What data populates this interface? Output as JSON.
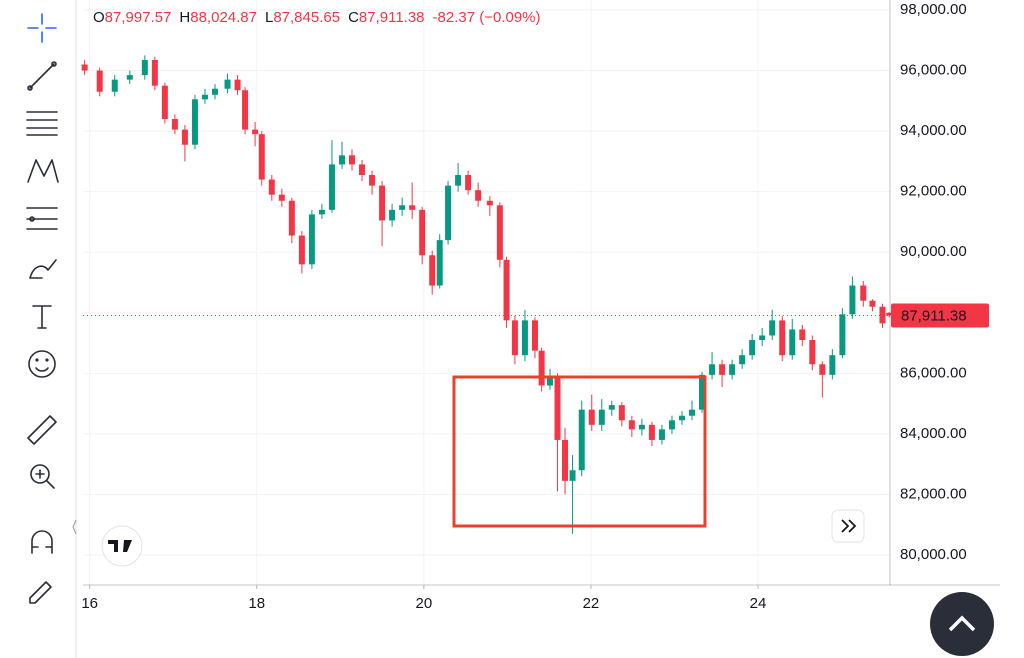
{
  "chart_data": {
    "type": "candlestick",
    "legend": [
      {
        "key": "O",
        "value": "87,997.57"
      },
      {
        "key": "H",
        "value": "88,024.87"
      },
      {
        "key": "L",
        "value": "87,845.65"
      },
      {
        "key": "C",
        "value": "87,911.38"
      }
    ],
    "change": "-82.37 (−0.09%)",
    "last_price": {
      "value": 87911.38,
      "label": "87,911.38"
    },
    "up_color": "#089981",
    "down_color": "#f23645",
    "xlim": [
      15.92,
      25.58
    ],
    "xticks": [
      16,
      18,
      20,
      22,
      24
    ],
    "ylim": [
      79010,
      98330
    ],
    "yticks": [
      {
        "value": 80000,
        "label": "80,000.00"
      },
      {
        "value": 82000,
        "label": "82,000.00"
      },
      {
        "value": 84000,
        "label": "84,000.00"
      },
      {
        "value": 86000,
        "label": "86,000.00"
      },
      {
        "value": 88000,
        "label": "88,000.00"
      },
      {
        "value": 90000,
        "label": "90,000.00"
      },
      {
        "value": 92000,
        "label": "92,000.00"
      },
      {
        "value": 94000,
        "label": "94,000.00"
      },
      {
        "value": 96000,
        "label": "96,000.00"
      },
      {
        "value": 98000,
        "label": "98,000.00"
      }
    ],
    "grid": true,
    "x": [
      15.94,
      16.12,
      16.3,
      16.48,
      16.66,
      16.78,
      16.9,
      17.02,
      17.14,
      17.26,
      17.38,
      17.5,
      17.65,
      17.77,
      17.86,
      17.98,
      18.06,
      18.18,
      18.3,
      18.42,
      18.54,
      18.66,
      18.78,
      18.9,
      19.02,
      19.14,
      19.26,
      19.38,
      19.5,
      19.62,
      19.74,
      19.86,
      19.98,
      20.1,
      20.19,
      20.29,
      20.41,
      20.53,
      20.65,
      20.79,
      20.91,
      20.99,
      21.09,
      21.21,
      21.33,
      21.41,
      21.51,
      21.6,
      21.69,
      21.78,
      21.89,
      22.01,
      22.13,
      22.25,
      22.37,
      22.49,
      22.61,
      22.73,
      22.85,
      22.97,
      23.09,
      23.21,
      23.33,
      23.45,
      23.57,
      23.69,
      23.81,
      23.93,
      24.05,
      24.17,
      24.29,
      24.41,
      24.53,
      24.65,
      24.77,
      24.89,
      25.01,
      25.13,
      25.26,
      25.37,
      25.49,
      25.57
    ],
    "open": [
      96200,
      96000,
      95300,
      95700,
      95850,
      96350,
      95500,
      94400,
      94050,
      93550,
      95050,
      95200,
      95400,
      95700,
      95350,
      94050,
      93900,
      92400,
      91900,
      91700,
      90550,
      89600,
      91250,
      91400,
      92900,
      93200,
      92900,
      92550,
      92200,
      91050,
      91400,
      91550,
      91400,
      89900,
      88900,
      90400,
      92200,
      92550,
      92050,
      91700,
      91550,
      89750,
      87750,
      86600,
      87750,
      86750,
      85600,
      85900,
      83800,
      82450,
      82800,
      84800,
      84300,
      84800,
      84950,
      84450,
      84150,
      84300,
      83800,
      84150,
      84450,
      84600,
      84800,
      85950,
      86300,
      85950,
      86300,
      86600,
      87100,
      87250,
      87750,
      86600,
      87450,
      87100,
      86300,
      85950,
      86600,
      87950,
      88900,
      88400,
      88200,
      87997.57
    ],
    "high": [
      96350,
      96100,
      95850,
      96000,
      96500,
      96450,
      95600,
      94550,
      94200,
      95200,
      95400,
      95550,
      95900,
      95850,
      95450,
      94300,
      94000,
      92550,
      92100,
      91800,
      90700,
      91400,
      91600,
      93700,
      93650,
      93400,
      93050,
      92700,
      92350,
      91600,
      91800,
      92300,
      91500,
      90050,
      90600,
      92350,
      92950,
      92700,
      92300,
      91850,
      91650,
      89850,
      87900,
      88100,
      87850,
      86850,
      86150,
      86000,
      84200,
      83300,
      85100,
      85300,
      85150,
      85100,
      85050,
      84600,
      84500,
      84400,
      84300,
      84600,
      84750,
      85100,
      86050,
      86700,
      86450,
      86450,
      86800,
      87300,
      87500,
      88100,
      87900,
      87800,
      87600,
      87250,
      86400,
      86800,
      88150,
      89200,
      89050,
      88450,
      88300,
      88024.87
    ],
    "low": [
      95850,
      95150,
      95150,
      95550,
      95700,
      95350,
      94250,
      93900,
      93000,
      93400,
      94900,
      95050,
      95250,
      95200,
      93900,
      93500,
      92200,
      91700,
      91500,
      90300,
      89300,
      89450,
      91100,
      91300,
      92750,
      92700,
      92350,
      91900,
      90200,
      90850,
      91200,
      91100,
      89600,
      88600,
      88800,
      90250,
      92000,
      91900,
      91500,
      91200,
      89500,
      87500,
      86300,
      86400,
      86500,
      85400,
      85450,
      82100,
      82000,
      80700,
      82600,
      84100,
      84100,
      84600,
      84250,
      83900,
      83950,
      83600,
      83650,
      84000,
      84300,
      84450,
      84700,
      85800,
      85550,
      85800,
      86150,
      86450,
      86900,
      87100,
      86400,
      86450,
      86900,
      86100,
      85200,
      85800,
      86500,
      87800,
      88200,
      88050,
      87500,
      87845.65
    ],
    "close": [
      96000,
      95300,
      95700,
      95850,
      96350,
      95500,
      94400,
      94050,
      93550,
      95050,
      95200,
      95400,
      95700,
      95350,
      94050,
      93900,
      92400,
      91900,
      91700,
      90550,
      89600,
      91250,
      91400,
      92900,
      93200,
      92900,
      92550,
      92200,
      91050,
      91400,
      91550,
      91400,
      89900,
      88900,
      90400,
      92200,
      92550,
      92050,
      91700,
      91550,
      89750,
      87750,
      86600,
      87750,
      86750,
      85600,
      85900,
      83800,
      82450,
      82800,
      84800,
      84300,
      84800,
      84950,
      84450,
      84150,
      84300,
      83800,
      84150,
      84450,
      84600,
      84800,
      85950,
      86300,
      85950,
      86300,
      86600,
      87100,
      87250,
      87750,
      86600,
      87450,
      87100,
      86300,
      85950,
      86600,
      87950,
      88900,
      88400,
      88200,
      87650,
      87911.38
    ]
  }
}
